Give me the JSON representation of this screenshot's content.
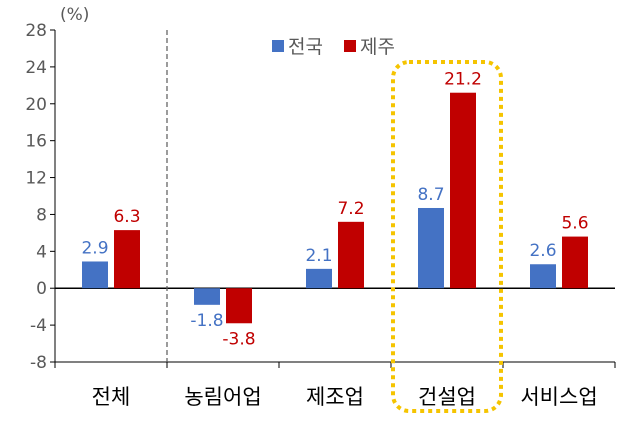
{
  "chart_data": {
    "type": "bar",
    "unit_label": "(%)",
    "categories": [
      "전체",
      "농림어업",
      "제조업",
      "건설업",
      "서비스업"
    ],
    "series": [
      {
        "name": "전국",
        "values": [
          2.9,
          -1.8,
          2.1,
          8.7,
          2.6
        ],
        "labels": [
          "2.9",
          "-1.8",
          "2.1",
          "8.7",
          "2.6"
        ],
        "color": "#4472C4"
      },
      {
        "name": "제주",
        "values": [
          6.3,
          -3.8,
          7.2,
          21.2,
          5.6
        ],
        "labels": [
          "6.3",
          "-3.8",
          "7.2",
          "21.2",
          "5.6"
        ],
        "color": "#C00000"
      }
    ],
    "ylim": [
      -8,
      28
    ],
    "yticks": [
      28,
      24,
      20,
      16,
      12,
      8,
      4,
      0,
      -4,
      -8
    ],
    "legend_position": "top",
    "highlight_category": "건설업",
    "highlight_color": "#F5C400",
    "divider_after_category": "전체",
    "grid": false
  }
}
